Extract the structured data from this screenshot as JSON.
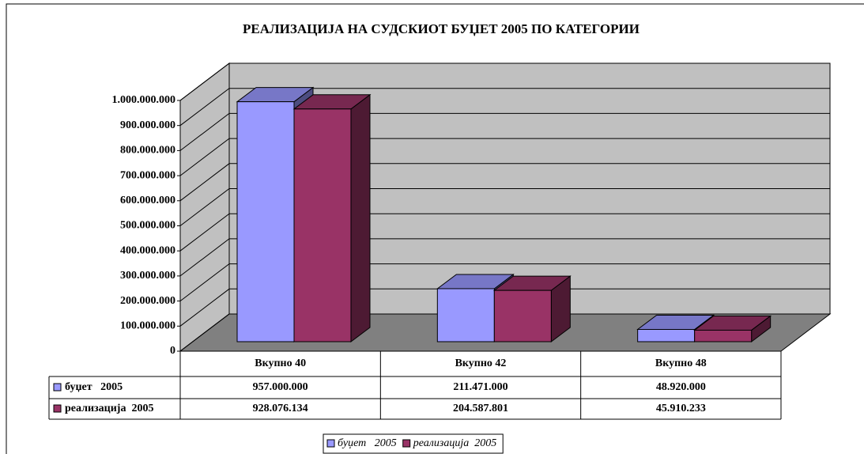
{
  "chart_data": {
    "type": "bar3d",
    "title": "РЕАЛИЗАЦИЈА НА СУДСКИОТ БУЏЕТ 2005 ПО КАТЕГОРИИ",
    "categories": [
      "Вкупно 40",
      "Вкупно 42",
      "Вкупно 48"
    ],
    "series": [
      {
        "name": "буџет   2005",
        "color": "#9999ff",
        "values": [
          957000000,
          211471000,
          48920000
        ],
        "value_labels": [
          "957.000.000",
          "211.471.000",
          "48.920.000"
        ]
      },
      {
        "name": "реализација  2005",
        "color": "#993366",
        "values": [
          928076134,
          204587801,
          45910233
        ],
        "value_labels": [
          "928.076.134",
          "204.587.801",
          "45.910.233"
        ]
      }
    ],
    "ylim": [
      0,
      1000000000
    ],
    "yticks": [
      0,
      {
        "value": 100000000,
        "label": "100.000.000"
      },
      {
        "value": 200000000,
        "label": "200.000.000"
      },
      {
        "value": 300000000,
        "label": "300.000.000"
      },
      {
        "value": 400000000,
        "label": "400.000.000"
      },
      {
        "value": 500000000,
        "label": "500.000.000"
      },
      {
        "value": 600000000,
        "label": "600.000.000"
      },
      {
        "value": 700000000,
        "label": "700.000.000"
      },
      {
        "value": 800000000,
        "label": "800.000.000"
      },
      {
        "value": 900000000,
        "label": "900.000.000"
      },
      {
        "value": 1000000000,
        "label": "1.000.000.000"
      }
    ],
    "grid": true,
    "legend": "bottom",
    "data_table": true
  }
}
